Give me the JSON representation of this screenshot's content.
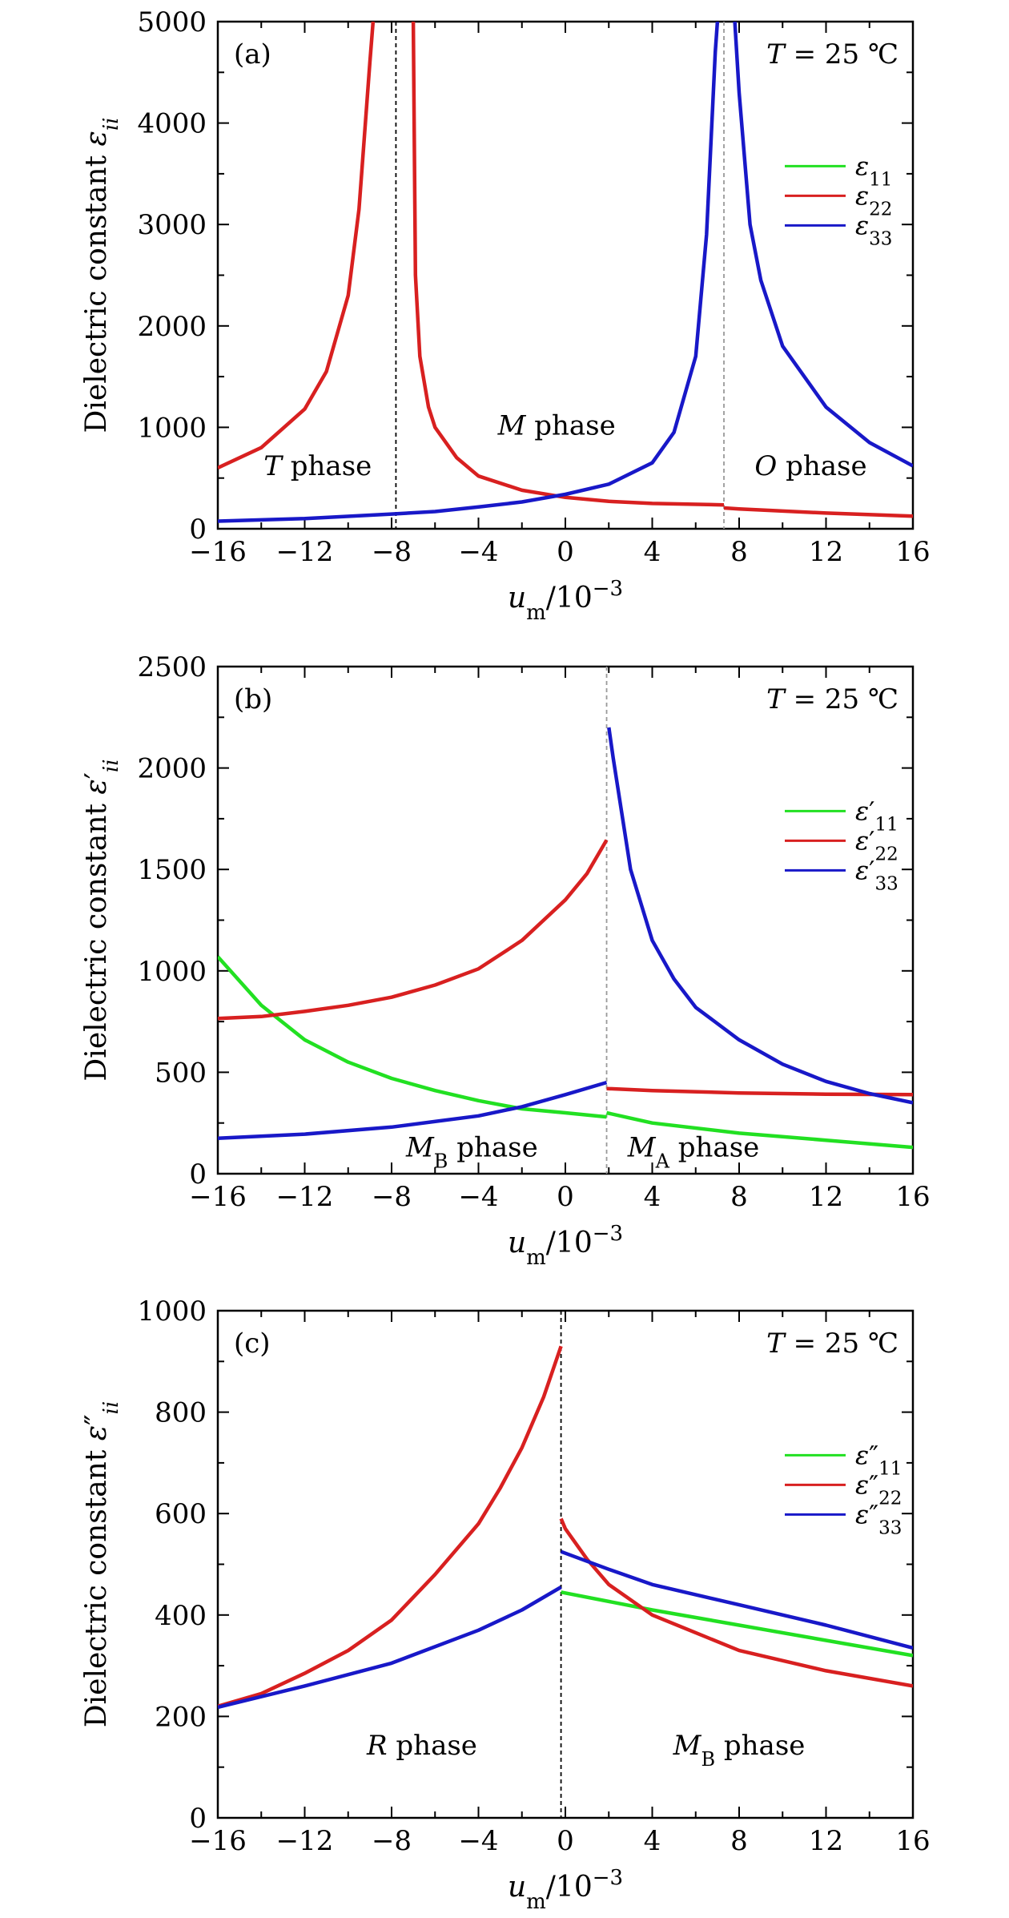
{
  "colors": {
    "eps11": "#22e022",
    "eps22": "#d82020",
    "eps33": "#1818c8",
    "boundary_dark": "#000000",
    "boundary_light": "#999999"
  },
  "chart_data": [
    {
      "type": "line",
      "panel_label": "(a)",
      "temperature": "T = 25 ℃",
      "ylabel": "Dielectric constant εii",
      "xlabel": "um/10−3",
      "xlim": [
        -16,
        16
      ],
      "ylim": [
        0,
        5000
      ],
      "x_ticks": [
        "−16",
        "−12",
        "−8",
        "−4",
        "0",
        "4",
        "8",
        "12",
        "16"
      ],
      "y_ticks": [
        "0",
        "1000",
        "2000",
        "3000",
        "4000",
        "5000"
      ],
      "legend_position": "right",
      "boundaries": [
        {
          "x": -7.8,
          "style": "dark"
        },
        {
          "x": 7.3,
          "style": "light"
        }
      ],
      "phase_labels": [
        {
          "text": "T phase",
          "x": -11.4,
          "y": 530
        },
        {
          "text": "M phase",
          "x": -0.4,
          "y": 930
        },
        {
          "text": "O phase",
          "x": 11.3,
          "y": 530
        }
      ],
      "series": [
        {
          "name": "ε11",
          "color_key": "eps11",
          "segments": []
        },
        {
          "name": "ε22",
          "color_key": "eps22",
          "segments": [
            [
              [
                -16,
                600
              ],
              [
                -14,
                800
              ],
              [
                -12,
                1180
              ],
              [
                -11,
                1550
              ],
              [
                -10,
                2300
              ],
              [
                -9.5,
                3150
              ],
              [
                -9.0,
                4600
              ],
              [
                -8.85,
                5000
              ]
            ],
            [
              [
                -7.0,
                5000
              ],
              [
                -6.9,
                2500
              ],
              [
                -6.7,
                1700
              ],
              [
                -6.3,
                1200
              ],
              [
                -6,
                1000
              ],
              [
                -5,
                700
              ],
              [
                -4,
                520
              ],
              [
                -2,
                380
              ],
              [
                0,
                310
              ],
              [
                2,
                270
              ],
              [
                4,
                250
              ],
              [
                7.3,
                235
              ]
            ],
            [
              [
                7.3,
                205
              ],
              [
                8,
                195
              ],
              [
                12,
                155
              ],
              [
                16,
                125
              ]
            ]
          ]
        },
        {
          "name": "ε33",
          "color_key": "eps33",
          "segments": [
            [
              [
                -16,
                75
              ],
              [
                -12,
                100
              ],
              [
                -8,
                145
              ],
              [
                -6,
                170
              ],
              [
                -4,
                215
              ],
              [
                -2,
                265
              ],
              [
                0,
                340
              ],
              [
                2,
                440
              ],
              [
                4,
                650
              ],
              [
                5,
                950
              ],
              [
                6,
                1700
              ],
              [
                6.5,
                2900
              ],
              [
                6.9,
                4700
              ],
              [
                7.0,
                5000
              ]
            ],
            [
              [
                7.8,
                5000
              ],
              [
                8.0,
                4300
              ],
              [
                8.5,
                3000
              ],
              [
                9,
                2450
              ],
              [
                10,
                1800
              ],
              [
                12,
                1200
              ],
              [
                14,
                850
              ],
              [
                16,
                620
              ]
            ]
          ]
        }
      ]
    },
    {
      "type": "line",
      "panel_label": "(b)",
      "temperature": "T = 25 ℃",
      "ylabel": "Dielectric constant ε′ii",
      "xlabel": "um/10−3",
      "xlim": [
        -16,
        16
      ],
      "ylim": [
        0,
        2500
      ],
      "x_ticks": [
        "−16",
        "−12",
        "−8",
        "−4",
        "0",
        "4",
        "8",
        "12",
        "16"
      ],
      "y_ticks": [
        "0",
        "500",
        "1000",
        "1500",
        "2000",
        "2500"
      ],
      "legend_position": "right",
      "boundaries": [
        {
          "x": 1.9,
          "style": "light"
        }
      ],
      "phase_labels": [
        {
          "text": "MB phase",
          "x": -4.3,
          "y": 85
        },
        {
          "text": "MA phase",
          "x": 5.9,
          "y": 85
        }
      ],
      "series": [
        {
          "name": "ε′11",
          "color_key": "eps11",
          "segments": [
            [
              [
                -16,
                1070
              ],
              [
                -14,
                830
              ],
              [
                -12,
                660
              ],
              [
                -10,
                550
              ],
              [
                -8,
                470
              ],
              [
                -6,
                410
              ],
              [
                -4,
                360
              ],
              [
                -2,
                320
              ],
              [
                0,
                300
              ],
              [
                1.9,
                280
              ]
            ],
            [
              [
                1.9,
                300
              ],
              [
                4,
                250
              ],
              [
                8,
                200
              ],
              [
                12,
                165
              ],
              [
                16,
                130
              ]
            ]
          ]
        },
        {
          "name": "ε′22",
          "color_key": "eps22",
          "segments": [
            [
              [
                -16,
                765
              ],
              [
                -14,
                775
              ],
              [
                -12,
                800
              ],
              [
                -10,
                830
              ],
              [
                -8,
                870
              ],
              [
                -6,
                930
              ],
              [
                -4,
                1010
              ],
              [
                -2,
                1150
              ],
              [
                0,
                1350
              ],
              [
                1,
                1480
              ],
              [
                1.9,
                1645
              ]
            ],
            [
              [
                1.9,
                420
              ],
              [
                4,
                410
              ],
              [
                8,
                398
              ],
              [
                12,
                392
              ],
              [
                16,
                390
              ]
            ]
          ]
        },
        {
          "name": "ε′33",
          "color_key": "eps33",
          "segments": [
            [
              [
                -16,
                175
              ],
              [
                -12,
                195
              ],
              [
                -8,
                230
              ],
              [
                -4,
                285
              ],
              [
                -2,
                330
              ],
              [
                0,
                390
              ],
              [
                1.9,
                450
              ]
            ],
            [
              [
                2.0,
                2200
              ],
              [
                2.2,
                2050
              ],
              [
                3,
                1500
              ],
              [
                4,
                1150
              ],
              [
                5,
                960
              ],
              [
                6,
                820
              ],
              [
                8,
                660
              ],
              [
                10,
                540
              ],
              [
                12,
                455
              ],
              [
                14,
                395
              ],
              [
                16,
                350
              ]
            ]
          ]
        }
      ]
    },
    {
      "type": "line",
      "panel_label": "(c)",
      "temperature": "T = 25 ℃",
      "ylabel": "Dielectric constant ε″ii",
      "xlabel": "um/10−3",
      "xlim": [
        -16,
        16
      ],
      "ylim": [
        0,
        1000
      ],
      "x_ticks": [
        "−16",
        "−12",
        "−8",
        "−4",
        "0",
        "4",
        "8",
        "12",
        "16"
      ],
      "y_ticks": [
        "0",
        "200",
        "400",
        "600",
        "800",
        "1000"
      ],
      "legend_position": "right",
      "boundaries": [
        {
          "x": -0.2,
          "style": "dark"
        }
      ],
      "phase_labels": [
        {
          "text": "R phase",
          "x": -6.6,
          "y": 125
        },
        {
          "text": "MB phase",
          "x": 8.0,
          "y": 125
        }
      ],
      "series": [
        {
          "name": "ε″11",
          "color_key": "eps11",
          "segments": [
            [
              [
                -0.2,
                445
              ],
              [
                4,
                410
              ],
              [
                8,
                380
              ],
              [
                12,
                350
              ],
              [
                16,
                320
              ]
            ]
          ]
        },
        {
          "name": "ε″22",
          "color_key": "eps22",
          "segments": [
            [
              [
                -16,
                220
              ],
              [
                -14,
                245
              ],
              [
                -12,
                285
              ],
              [
                -10,
                330
              ],
              [
                -8,
                390
              ],
              [
                -6,
                480
              ],
              [
                -4,
                580
              ],
              [
                -3,
                650
              ],
              [
                -2,
                730
              ],
              [
                -1,
                830
              ],
              [
                -0.2,
                930
              ]
            ],
            [
              [
                -0.2,
                590
              ],
              [
                0,
                570
              ],
              [
                1,
                510
              ],
              [
                2,
                460
              ],
              [
                4,
                400
              ],
              [
                8,
                330
              ],
              [
                12,
                290
              ],
              [
                16,
                260
              ]
            ]
          ]
        },
        {
          "name": "ε″33",
          "color_key": "eps33",
          "segments": [
            [
              [
                -16,
                218
              ],
              [
                -12,
                260
              ],
              [
                -8,
                305
              ],
              [
                -4,
                370
              ],
              [
                -2,
                410
              ],
              [
                -0.2,
                455
              ]
            ],
            [
              [
                -0.2,
                525
              ],
              [
                2,
                490
              ],
              [
                4,
                460
              ],
              [
                8,
                420
              ],
              [
                12,
                380
              ],
              [
                16,
                335
              ]
            ]
          ]
        }
      ]
    }
  ]
}
